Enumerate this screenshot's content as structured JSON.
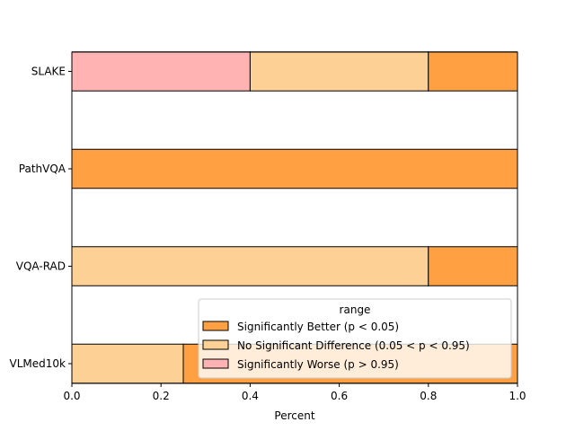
{
  "chart_data": {
    "type": "bar",
    "orientation": "horizontal",
    "stacked": true,
    "categories": [
      "SLAKE",
      "PathVQA",
      "VQA-RAD",
      "VLMed10k"
    ],
    "series": [
      {
        "name": "Significantly Worse (p > 0.95)",
        "values": [
          0.4,
          0.0,
          0.0,
          0.0
        ],
        "color": "#ffb3b3"
      },
      {
        "name": "No Significant Difference (0.05 < p < 0.95)",
        "values": [
          0.4,
          0.0,
          0.8,
          0.25
        ],
        "color": "#fdd095"
      },
      {
        "name": "Significantly Better (p < 0.05)",
        "values": [
          0.2,
          1.0,
          0.2,
          0.75
        ],
        "color": "#ffa142"
      }
    ],
    "stack_order": [
      "Significantly Worse (p > 0.95)",
      "No Significant Difference (0.05 < p < 0.95)",
      "Significantly Better (p < 0.05)"
    ],
    "xlabel": "Percent",
    "ylabel": "",
    "xlim": [
      0.0,
      1.0
    ],
    "xticks": [
      "0.0",
      "0.2",
      "0.4",
      "0.6",
      "0.8",
      "1.0"
    ],
    "grid": false,
    "legend": {
      "title": "range",
      "placement": "lower-right",
      "entries": [
        {
          "label": "Significantly Better (p < 0.05)",
          "color": "#ffa142"
        },
        {
          "label": "No Significant Difference (0.05 < p < 0.95)",
          "color": "#fdd095"
        },
        {
          "label": "Significantly Worse (p > 0.95)",
          "color": "#ffb3b3"
        }
      ]
    }
  }
}
